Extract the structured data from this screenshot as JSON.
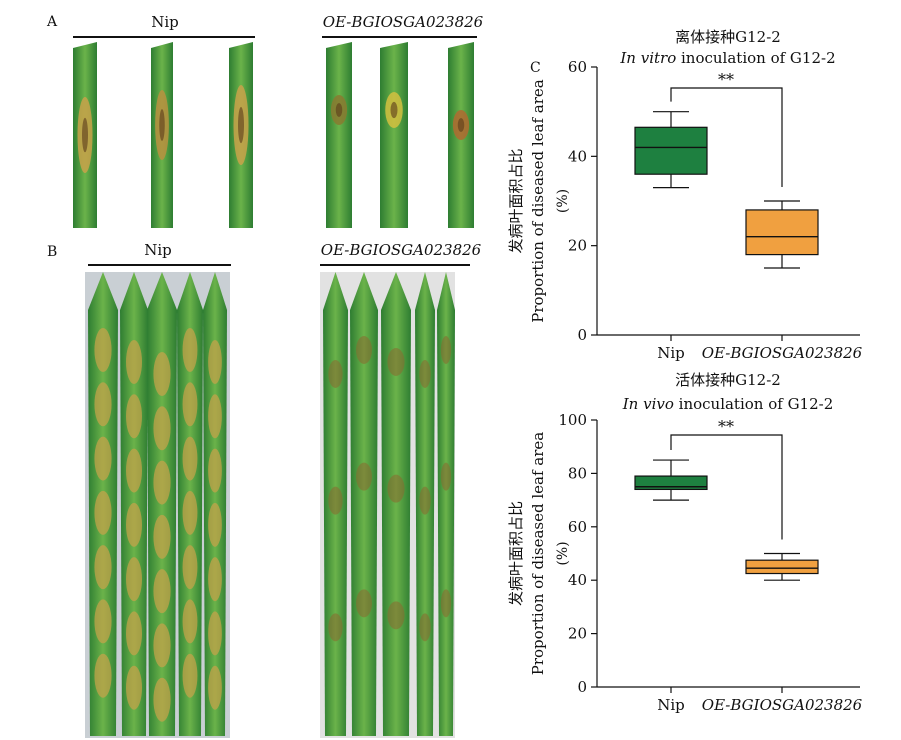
{
  "panels": {
    "a": {
      "letter": "A",
      "left_label": "Nip",
      "right_label": "OE-BGIOSGA023826"
    },
    "b": {
      "letter": "B",
      "left_label": "Nip",
      "right_label": "OE-BGIOSGA023826"
    },
    "c": {
      "letter": "C"
    }
  },
  "colors": {
    "nip_box": "#1e8040",
    "oe_box": "#f0a040",
    "leaf_dark": "#2e7d32",
    "leaf_light": "#6bb34a",
    "lesion": "#c9a24a"
  },
  "chart_data": [
    {
      "type": "box",
      "title_cn": "离体接种G12-2",
      "title_en_italic": "In vitro",
      "title_en_rest": " inoculation of G12-2",
      "ylabel_cn": "发病叶面积占比",
      "ylabel_en": "Proportion of diseased leaf area",
      "ylabel_unit": "(%)",
      "ylim": [
        0,
        60
      ],
      "yticks": [
        0,
        20,
        40,
        60
      ],
      "categories": [
        "Nip",
        "OE-BGIOSGA023826"
      ],
      "series": [
        {
          "category": "Nip",
          "min": 33,
          "q1": 36,
          "median": 42,
          "q3": 46.5,
          "max": 50
        },
        {
          "category": "OE-BGIOSGA023826",
          "min": 15,
          "q1": 18,
          "median": 22,
          "q3": 28,
          "max": 30
        }
      ],
      "annotation": "**"
    },
    {
      "type": "box",
      "title_cn": "活体接种G12-2",
      "title_en_italic": "In vivo",
      "title_en_rest": " inoculation of G12-2",
      "ylabel_cn": "发病叶面积占比",
      "ylabel_en": "Proportion of diseased leaf area",
      "ylabel_unit": "(%)",
      "ylim": [
        0,
        100
      ],
      "yticks": [
        0,
        20,
        40,
        60,
        80,
        100
      ],
      "categories": [
        "Nip",
        "OE-BGIOSGA023826"
      ],
      "series": [
        {
          "category": "Nip",
          "min": 70,
          "q1": 74,
          "median": 75,
          "q3": 79,
          "max": 85
        },
        {
          "category": "OE-BGIOSGA023826",
          "min": 40,
          "q1": 42.5,
          "median": 44.5,
          "q3": 47.5,
          "max": 50
        }
      ],
      "annotation": "**"
    }
  ]
}
